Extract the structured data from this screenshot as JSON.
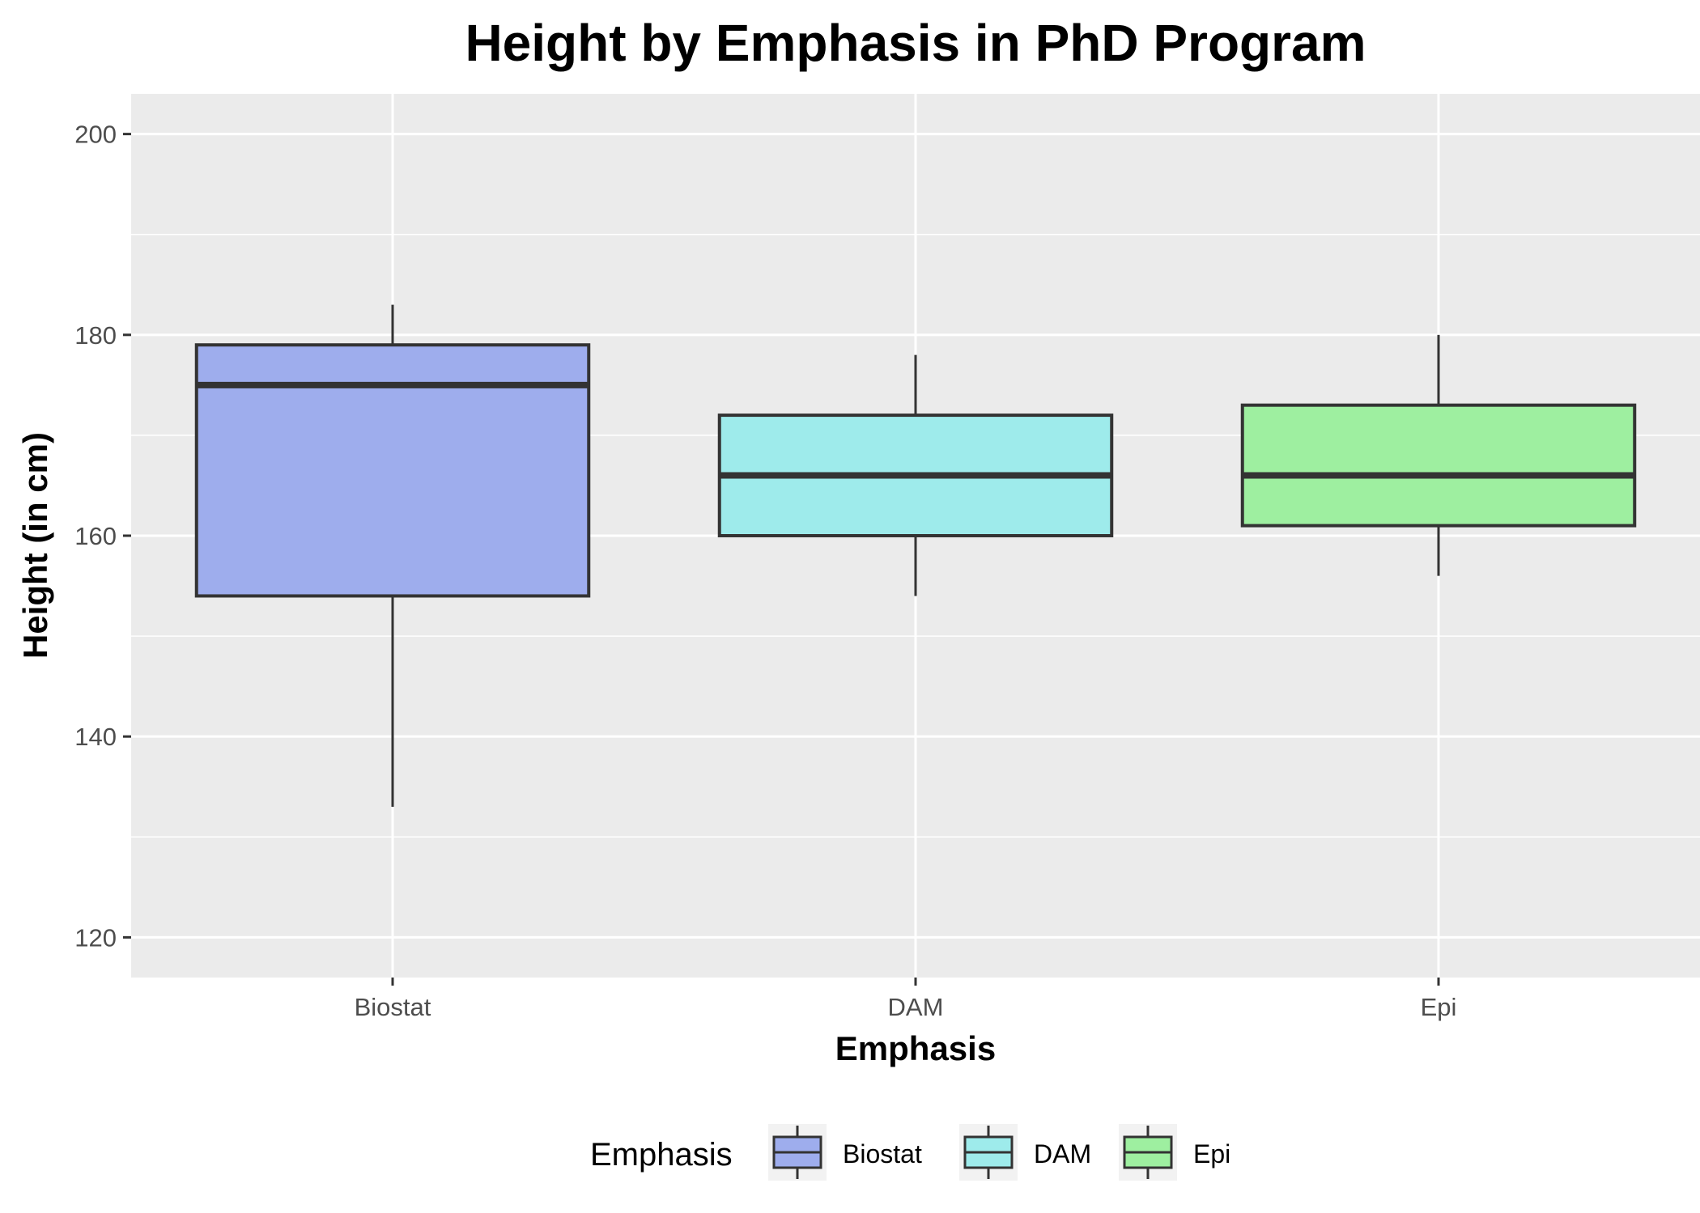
{
  "chart_data": {
    "type": "box",
    "title": "Height by Emphasis in PhD Program",
    "xlabel": "Emphasis",
    "ylabel": "Height (in cm)",
    "categories": [
      "Biostat",
      "DAM",
      "Epi"
    ],
    "y_ticks": [
      "120",
      "140",
      "160",
      "180",
      "200"
    ],
    "ylim": [
      116,
      204
    ],
    "grid": true,
    "legend": {
      "title": "Emphasis",
      "position": "bottom",
      "entries": [
        "Biostat",
        "DAM",
        "Epi"
      ]
    },
    "series": [
      {
        "name": "Biostat",
        "lower_whisker": 133,
        "q1": 154,
        "median": 175,
        "q3": 179,
        "upper_whisker": 183,
        "color": "#9EADED"
      },
      {
        "name": "DAM",
        "lower_whisker": 154,
        "q1": 160,
        "median": 166,
        "q3": 172,
        "upper_whisker": 178,
        "color": "#9EEBEB"
      },
      {
        "name": "Epi",
        "lower_whisker": 156,
        "q1": 161,
        "median": 166,
        "q3": 173,
        "upper_whisker": 180,
        "color": "#9EEFA0"
      }
    ],
    "colors": {
      "panel_background": "#EBEBEB",
      "grid": "#FFFFFF",
      "box_outline": "#333333"
    }
  }
}
